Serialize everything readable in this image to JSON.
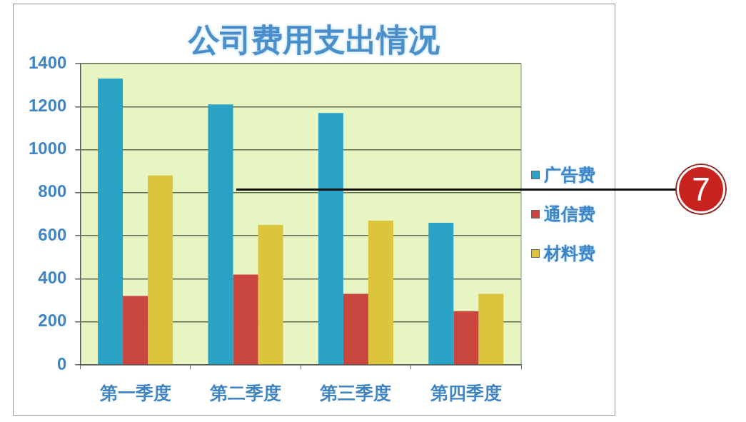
{
  "chart_data": {
    "type": "bar",
    "title": "公司费用支出情况",
    "categories": [
      "第一季度",
      "第二季度",
      "第三季度",
      "第四季度"
    ],
    "series": [
      {
        "name": "广告费",
        "color": "#2ba3c7",
        "values": [
          1330,
          1210,
          1170,
          660
        ]
      },
      {
        "name": "通信费",
        "color": "#c9463e",
        "values": [
          320,
          420,
          330,
          250
        ]
      },
      {
        "name": "材料费",
        "color": "#dcc43c",
        "values": [
          880,
          650,
          670,
          330
        ]
      }
    ],
    "ylim": [
      0,
      1400
    ],
    "yticks": [
      0,
      200,
      400,
      600,
      800,
      1000,
      1200,
      1400
    ],
    "grid": "y",
    "legend": "right",
    "annotations": [
      "7"
    ]
  }
}
